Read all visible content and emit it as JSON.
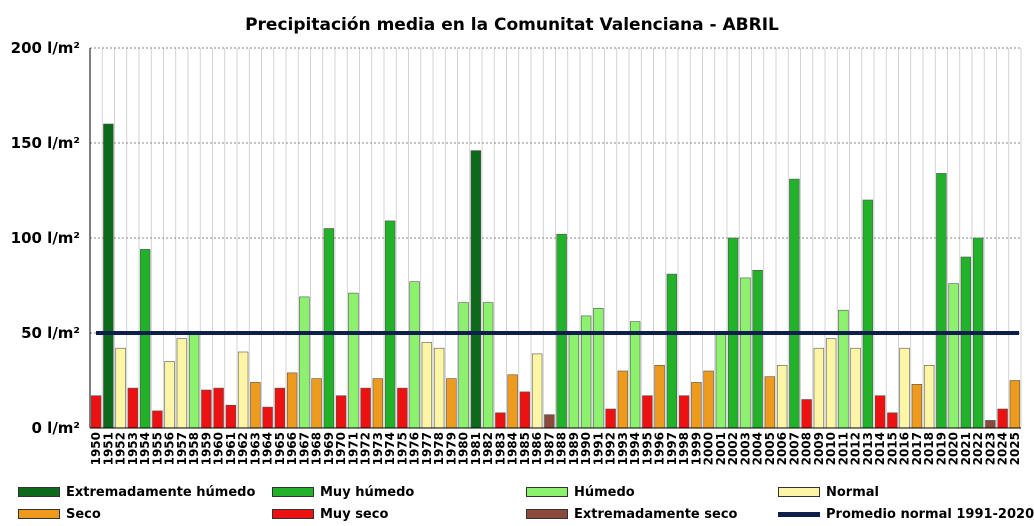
{
  "chart_data": {
    "type": "bar",
    "title": "Precipitación media en la Comunitat Valenciana - ABRIL",
    "y_ticks": [
      "0 l/m²",
      "50 l/m²",
      "100 l/m²",
      "150 l/m²",
      "200 l/m²"
    ],
    "ylim": [
      0,
      200
    ],
    "grid": true,
    "categories": [
      "1950",
      "1951",
      "1952",
      "1953",
      "1954",
      "1955",
      "1956",
      "1957",
      "1958",
      "1959",
      "1960",
      "1961",
      "1962",
      "1963",
      "1964",
      "1965",
      "1966",
      "1967",
      "1968",
      "1969",
      "1970",
      "1971",
      "1972",
      "1973",
      "1974",
      "1975",
      "1976",
      "1977",
      "1978",
      "1979",
      "1980",
      "1981",
      "1982",
      "1983",
      "1984",
      "1985",
      "1986",
      "1987",
      "1988",
      "1989",
      "1990",
      "1991",
      "1992",
      "1993",
      "1994",
      "1995",
      "1996",
      "1997",
      "1998",
      "1999",
      "2000",
      "2001",
      "2002",
      "2003",
      "2004",
      "2005",
      "2006",
      "2007",
      "2008",
      "2009",
      "2010",
      "2011",
      "2012",
      "2013",
      "2014",
      "2015",
      "2016",
      "2017",
      "2018",
      "2019",
      "2020",
      "2021",
      "2022",
      "2023",
      "2024",
      "2025"
    ],
    "values": [
      17,
      160,
      42,
      21,
      94,
      9,
      35,
      47,
      50,
      20,
      21,
      12,
      40,
      24,
      11,
      21,
      29,
      69,
      26,
      105,
      17,
      71,
      21,
      26,
      109,
      21,
      77,
      45,
      42,
      26,
      66,
      146,
      66,
      8,
      28,
      19,
      39,
      7,
      102,
      50,
      59,
      63,
      10,
      30,
      56,
      17,
      33,
      81,
      17,
      24,
      30,
      50,
      100,
      79,
      83,
      27,
      33,
      131,
      15,
      42,
      47,
      62,
      42,
      120,
      17,
      8,
      42,
      23,
      33,
      134,
      76,
      90,
      100,
      4,
      10,
      25
    ],
    "classes": [
      "muy_seco",
      "ext_humedo",
      "normal",
      "muy_seco",
      "muy_humedo",
      "muy_seco",
      "normal",
      "normal",
      "humedo",
      "muy_seco",
      "muy_seco",
      "muy_seco",
      "normal",
      "seco",
      "muy_seco",
      "muy_seco",
      "seco",
      "humedo",
      "seco",
      "muy_humedo",
      "muy_seco",
      "humedo",
      "muy_seco",
      "seco",
      "muy_humedo",
      "muy_seco",
      "humedo",
      "normal",
      "normal",
      "seco",
      "humedo",
      "ext_humedo",
      "humedo",
      "muy_seco",
      "seco",
      "muy_seco",
      "normal",
      "ext_seco",
      "muy_humedo",
      "humedo",
      "humedo",
      "humedo",
      "muy_seco",
      "seco",
      "humedo",
      "muy_seco",
      "seco",
      "muy_humedo",
      "muy_seco",
      "seco",
      "seco",
      "humedo",
      "muy_humedo",
      "humedo",
      "muy_humedo",
      "seco",
      "normal",
      "muy_humedo",
      "muy_seco",
      "normal",
      "normal",
      "humedo",
      "normal",
      "muy_humedo",
      "muy_seco",
      "muy_seco",
      "normal",
      "seco",
      "normal",
      "muy_humedo",
      "humedo",
      "muy_humedo",
      "muy_humedo",
      "ext_seco",
      "muy_seco",
      "seco"
    ],
    "reference_line": {
      "label": "Promedio normal 1991-2020",
      "value": 50,
      "color": "#0d1f4a"
    },
    "class_colors": {
      "ext_humedo": "#0b6b1b",
      "muy_humedo": "#22b22a",
      "humedo": "#8cf26e",
      "normal": "#fdf5a6",
      "seco": "#ee9a1c",
      "muy_seco": "#ee1111",
      "ext_seco": "#8b4a3c"
    },
    "legend": [
      {
        "key": "ext_humedo",
        "label": "Extremadamente húmedo"
      },
      {
        "key": "muy_humedo",
        "label": "Muy húmedo"
      },
      {
        "key": "humedo",
        "label": "Húmedo"
      },
      {
        "key": "normal",
        "label": "Normal"
      },
      {
        "key": "seco",
        "label": "Seco"
      },
      {
        "key": "muy_seco",
        "label": "Muy seco"
      },
      {
        "key": "ext_seco",
        "label": "Extremadamente seco"
      }
    ],
    "legend_placement": "bottom"
  }
}
